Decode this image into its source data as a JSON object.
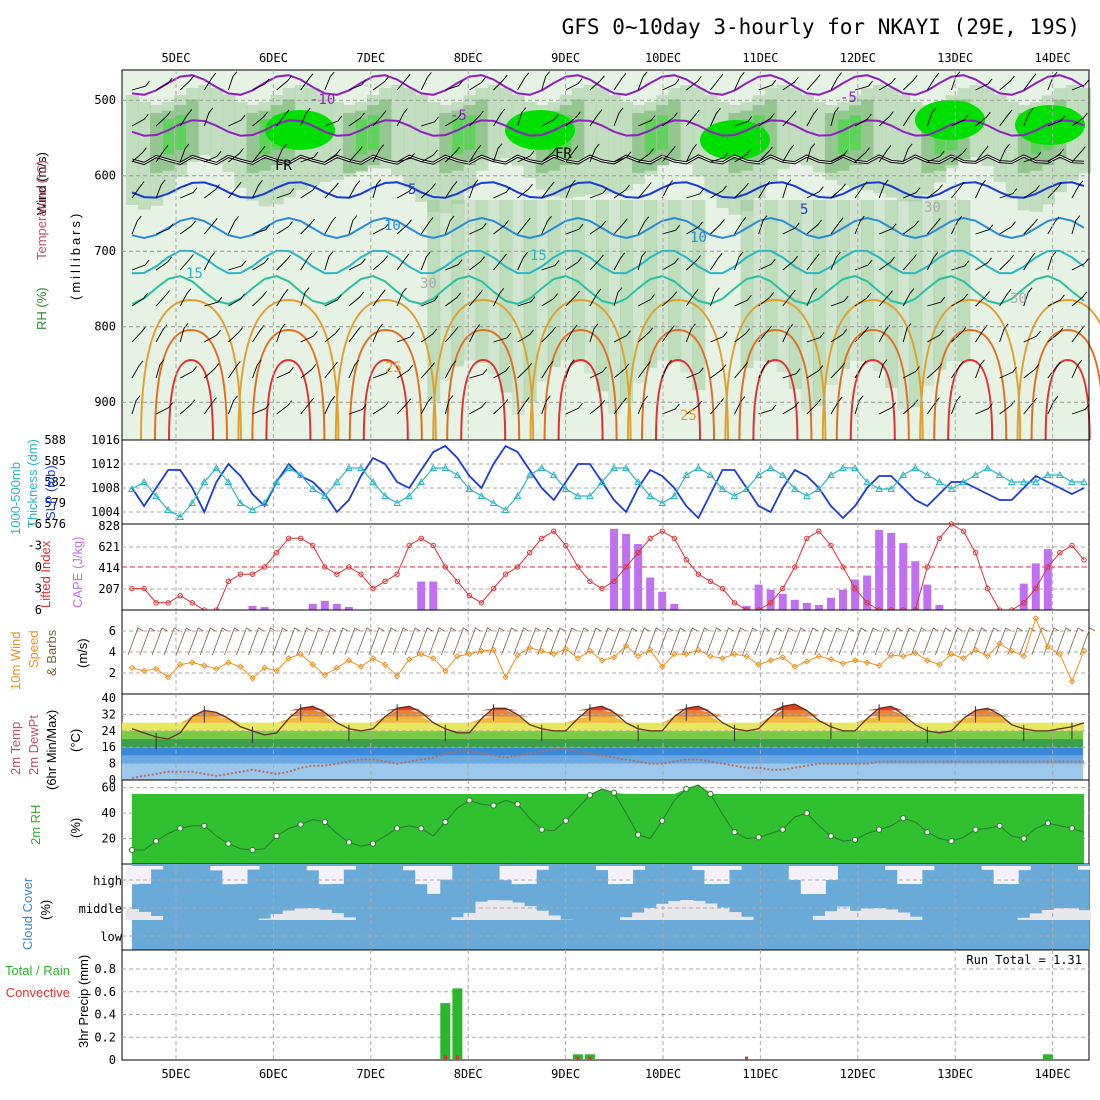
{
  "title": "GFS 0~10day 3-hourly for NKAYI (29E, 19S)",
  "dates": [
    "5DEC",
    "6DEC",
    "7DEC",
    "8DEC",
    "9DEC",
    "10DEC",
    "11DEC",
    "12DEC",
    "13DEC",
    "14DEC"
  ],
  "colors": {
    "rh_light": "#e4f2e2",
    "rh_mid": "#b8d8b4",
    "rh_dark": "#8fc48a",
    "rh_green": "#5ed35a",
    "rh_bright": "#00e000",
    "slp": "#1a3bd6",
    "thickness": "#2ab7c4",
    "lifted": "#e03030",
    "cape": "#c070f0",
    "wind_speed": "#f0901a",
    "barbs": "#806040",
    "rh2m": "#3ab03a",
    "cloud": "#6aaad8",
    "precip_total": "#2ab52a",
    "precip_conv": "#e03030"
  },
  "panels": {
    "upper": {
      "labels": [
        "Wind (m/s)",
        "Temperature (°C)",
        "RH (%)",
        "(millibars)"
      ],
      "y_ticks": [
        "500",
        "600",
        "700",
        "800",
        "900"
      ],
      "contour_labels": [
        "-10",
        "-5",
        "-5",
        "FR",
        "FR",
        "5",
        "5",
        "10",
        "10",
        "15",
        "15",
        "25",
        "25",
        "30",
        "30",
        "30"
      ]
    },
    "slp": {
      "labels": [
        "1000-500mb",
        "Thickness (dm)",
        "SLP (mb)"
      ],
      "left_ticks": [
        "588",
        "585",
        "582",
        "579",
        "576"
      ],
      "right_ticks": [
        "1016",
        "1012",
        "1008",
        "1004"
      ]
    },
    "cape": {
      "labels": [
        "Lifted Index",
        "CAPE (J/kg)"
      ],
      "left_ticks": [
        "-6",
        "-3",
        "0",
        "3",
        "6"
      ],
      "right_ticks": [
        "828",
        "621",
        "414",
        "207"
      ]
    },
    "wind10": {
      "labels": [
        "10m Wind",
        "Speed",
        "& Barbs",
        "(m/s)"
      ],
      "ticks": [
        "6",
        "4",
        "2"
      ]
    },
    "temp2m": {
      "labels": [
        "2m Temp",
        "2m DewPt",
        "(6hr Min/Max)",
        "(°C)"
      ],
      "ticks": [
        "40",
        "32",
        "24",
        "16",
        "8",
        "0"
      ]
    },
    "rh2m": {
      "labels": [
        "2m RH",
        "(%)"
      ],
      "ticks": [
        "60",
        "40",
        "20"
      ]
    },
    "cloud": {
      "labels": [
        "Cloud Cover",
        "(%)"
      ],
      "levels": [
        "high",
        "middle",
        "low"
      ]
    },
    "precip": {
      "labels": [
        "Total / Rain",
        "Convective",
        "3hr Precip (mm)"
      ],
      "ticks": [
        "0.8",
        "0.6",
        "0.4",
        "0.2",
        "0"
      ],
      "run_total": "Run Total = 1.31"
    }
  },
  "chart_data": [
    {
      "type": "line",
      "title": "SLP and 1000-500mb Thickness",
      "series": [
        {
          "name": "SLP (mb)",
          "values": [
            1008,
            1005,
            1008,
            1011,
            1011,
            1008,
            1004,
            1009,
            1012,
            1010,
            1007,
            1005,
            1009,
            1012,
            1010,
            1009,
            1007,
            1004,
            1006,
            1010,
            1013,
            1012,
            1009,
            1008,
            1011,
            1014,
            1015,
            1013,
            1010,
            1008,
            1012,
            1015,
            1014,
            1011,
            1008,
            1006,
            1009,
            1012,
            1012,
            1009,
            1006,
            1004,
            1008,
            1011,
            1010,
            1008,
            1005,
            1003,
            1007,
            1011,
            1011,
            1008,
            1005,
            1004,
            1008,
            1011,
            1010,
            1008,
            1005,
            1003,
            1005,
            1008,
            1010,
            1010,
            1008,
            1006,
            1005,
            1007,
            1009,
            1009,
            1008,
            1007,
            1006,
            1006,
            1008,
            1010,
            1009,
            1008,
            1007,
            1008
          ]
        },
        {
          "name": "1000-500mb Thickness (dm)",
          "values": [
            581,
            582,
            580,
            578,
            577,
            579,
            582,
            584,
            582,
            579,
            578,
            579,
            582,
            584,
            583,
            581,
            580,
            582,
            584,
            584,
            582,
            580,
            579,
            580,
            582,
            584,
            584,
            583,
            581,
            580,
            579,
            578,
            580,
            583,
            584,
            583,
            581,
            580,
            580,
            582,
            584,
            584,
            582,
            580,
            579,
            580,
            583,
            584,
            583,
            581,
            580,
            581,
            583,
            584,
            583,
            581,
            580,
            581,
            583,
            584,
            584,
            582,
            581,
            581,
            583,
            584,
            583,
            582,
            581,
            582,
            583,
            584,
            583,
            582,
            582,
            582,
            583,
            583,
            582,
            582
          ]
        }
      ]
    },
    {
      "type": "bar",
      "title": "CAPE and Lifted Index",
      "series": [
        {
          "name": "CAPE (J/kg)",
          "values": [
            0,
            0,
            0,
            0,
            0,
            0,
            0,
            0,
            0,
            0,
            40,
            30,
            0,
            0,
            0,
            60,
            90,
            60,
            30,
            0,
            0,
            0,
            0,
            0,
            280,
            280,
            0,
            0,
            0,
            0,
            0,
            0,
            0,
            0,
            0,
            0,
            0,
            0,
            0,
            0,
            800,
            750,
            650,
            320,
            180,
            60,
            0,
            0,
            0,
            0,
            0,
            40,
            250,
            200,
            160,
            100,
            70,
            50,
            120,
            200,
            300,
            340,
            790,
            760,
            660,
            480,
            250,
            50,
            0,
            0,
            0,
            0,
            0,
            0,
            260,
            460,
            600,
            0,
            0,
            0
          ]
        },
        {
          "name": "Lifted Index",
          "values": [
            3,
            3,
            5,
            5,
            4,
            5,
            6,
            6,
            2,
            1,
            1,
            0,
            -2,
            -4,
            -4,
            -3,
            0,
            1,
            0,
            1,
            3,
            2,
            1,
            -3,
            -4,
            -3,
            0,
            2,
            4,
            5,
            3,
            1,
            0,
            -2,
            -4,
            -5,
            -3,
            0,
            2,
            3,
            2,
            0,
            -2,
            -4,
            -5,
            -4,
            -1,
            1,
            2,
            3,
            5,
            6,
            6,
            5,
            3,
            0,
            -4,
            -5,
            -3,
            0,
            3,
            5,
            6,
            6,
            6,
            6,
            0,
            -4,
            -6,
            -5,
            -2,
            3,
            6,
            6,
            5,
            3,
            0,
            -2,
            -3,
            -1
          ]
        }
      ]
    },
    {
      "type": "line",
      "title": "10m Wind Speed",
      "series": [
        {
          "name": "Speed (m/s)",
          "values": [
            2.5,
            2.2,
            2.4,
            1.6,
            2.8,
            3,
            2.7,
            2.4,
            3,
            2.6,
            1.5,
            2.5,
            2.2,
            3.4,
            3.8,
            2.8,
            1.8,
            2.5,
            3.2,
            2.6,
            3.4,
            2.8,
            1.7,
            3.3,
            3.8,
            3.4,
            2.2,
            3.6,
            3.8,
            4.1,
            4.2,
            1.6,
            3.7,
            4.4,
            4.1,
            3.8,
            4.3,
            3.4,
            4.1,
            3.2,
            3.5,
            4.6,
            3.6,
            4.2,
            2.6,
            3.8,
            3.8,
            4.2,
            3.6,
            3.4,
            3.8,
            3.6,
            2.8,
            3.2,
            3.5,
            2.6,
            3.1,
            3.6,
            3.3,
            2.9,
            3.2,
            3.0,
            2.7,
            3.7,
            3.6,
            3.9,
            3.2,
            2.8,
            3.8,
            3.4,
            4.2,
            3.6,
            4.8,
            4.1,
            3.6,
            7.2,
            4.5,
            3.8,
            1.2,
            4.1
          ]
        }
      ]
    },
    {
      "type": "area",
      "title": "2m Temp and DewPt",
      "series": [
        {
          "name": "2m Temp (°C)",
          "values": [
            25,
            23,
            21,
            20,
            23,
            31,
            34,
            33,
            30,
            26,
            24,
            22,
            23,
            30,
            35,
            36,
            33,
            28,
            25,
            24,
            25,
            31,
            35,
            36,
            33,
            28,
            25,
            23,
            23,
            30,
            35,
            35,
            32,
            27,
            25,
            24,
            24,
            30,
            35,
            36,
            33,
            28,
            25,
            24,
            24,
            31,
            35,
            36,
            33,
            28,
            25,
            24,
            25,
            31,
            36,
            37,
            34,
            29,
            26,
            24,
            24,
            30,
            35,
            36,
            32,
            27,
            24,
            23,
            24,
            30,
            34,
            35,
            32,
            27,
            25,
            24,
            24,
            25,
            26,
            28
          ]
        },
        {
          "name": "2m DewPt (°C)",
          "values": [
            1,
            2,
            3,
            4,
            4,
            4,
            3,
            2,
            3,
            4,
            5,
            4,
            3,
            4,
            6,
            7,
            7,
            8,
            9,
            10,
            10,
            9,
            8,
            9,
            10,
            11,
            13,
            14,
            14,
            13,
            12,
            11,
            12,
            13,
            14,
            15,
            15,
            14,
            13,
            12,
            11,
            10,
            9,
            8,
            8,
            9,
            10,
            10,
            9,
            8,
            7,
            6,
            6,
            5,
            5,
            6,
            7,
            8,
            8,
            8,
            8,
            8,
            9,
            9,
            9,
            9,
            9,
            9,
            9,
            9,
            9,
            9,
            9,
            9,
            9,
            9,
            9,
            9,
            9,
            9
          ]
        }
      ]
    },
    {
      "type": "area",
      "title": "2m RH",
      "series": [
        {
          "name": "2m RH (%)",
          "values": [
            11,
            11,
            18,
            24,
            28,
            30,
            30,
            22,
            16,
            12,
            11,
            12,
            22,
            28,
            31,
            35,
            33,
            24,
            17,
            14,
            16,
            22,
            28,
            30,
            28,
            22,
            33,
            44,
            50,
            47,
            46,
            50,
            47,
            36,
            27,
            26,
            34,
            44,
            54,
            59,
            56,
            40,
            23,
            20,
            34,
            50,
            59,
            62,
            55,
            39,
            25,
            20,
            21,
            24,
            27,
            37,
            40,
            30,
            22,
            18,
            19,
            24,
            27,
            30,
            36,
            33,
            25,
            20,
            18,
            21,
            27,
            28,
            30,
            22,
            20,
            28,
            32,
            30,
            28,
            25
          ]
        }
      ]
    },
    {
      "type": "bar",
      "title": "3hr Precip (mm)",
      "series": [
        {
          "name": "Total / Rain",
          "values": [
            0,
            0,
            0,
            0,
            0,
            0,
            0,
            0,
            0,
            0,
            0,
            0,
            0,
            0,
            0,
            0,
            0,
            0,
            0,
            0,
            0,
            0,
            0,
            0,
            0,
            0,
            0.5,
            0.63,
            0,
            0,
            0,
            0,
            0,
            0,
            0,
            0,
            0,
            0.05,
            0.05,
            0,
            0,
            0,
            0,
            0,
            0,
            0,
            0,
            0,
            0,
            0,
            0,
            0,
            0,
            0,
            0,
            0,
            0,
            0,
            0,
            0,
            0,
            0,
            0,
            0,
            0,
            0,
            0,
            0,
            0,
            0,
            0,
            0,
            0,
            0,
            0,
            0,
            0.05,
            0,
            0,
            0
          ]
        },
        {
          "name": "Convective",
          "values": [
            0,
            0,
            0,
            0,
            0,
            0,
            0,
            0,
            0,
            0,
            0,
            0,
            0,
            0,
            0,
            0,
            0,
            0,
            0,
            0,
            0,
            0,
            0,
            0,
            0,
            0,
            0.04,
            0.04,
            0,
            0,
            0,
            0,
            0,
            0,
            0,
            0,
            0,
            0.03,
            0.03,
            0,
            0,
            0,
            0,
            0,
            0,
            0,
            0,
            0,
            0,
            0,
            0,
            0.03,
            0,
            0,
            0,
            0,
            0,
            0,
            0,
            0,
            0,
            0,
            0,
            0,
            0,
            0,
            0,
            0,
            0,
            0,
            0,
            0,
            0,
            0,
            0,
            0,
            0,
            0,
            0,
            0
          ]
        }
      ]
    }
  ]
}
